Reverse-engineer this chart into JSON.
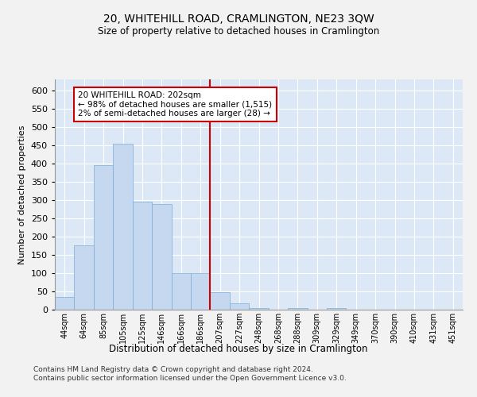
{
  "title": "20, WHITEHILL ROAD, CRAMLINGTON, NE23 3QW",
  "subtitle": "Size of property relative to detached houses in Cramlington",
  "xlabel": "Distribution of detached houses by size in Cramlington",
  "ylabel": "Number of detached properties",
  "bar_color": "#c5d8ef",
  "bar_edge_color": "#7aadd4",
  "fig_bg_color": "#f2f2f2",
  "ax_bg_color": "#dce8f5",
  "grid_color": "#ffffff",
  "categories": [
    "44sqm",
    "64sqm",
    "85sqm",
    "105sqm",
    "125sqm",
    "146sqm",
    "166sqm",
    "186sqm",
    "207sqm",
    "227sqm",
    "248sqm",
    "268sqm",
    "288sqm",
    "309sqm",
    "329sqm",
    "349sqm",
    "370sqm",
    "390sqm",
    "410sqm",
    "431sqm",
    "451sqm"
  ],
  "values": [
    35,
    175,
    395,
    455,
    295,
    290,
    100,
    100,
    48,
    17,
    5,
    1,
    5,
    0,
    5,
    0,
    0,
    1,
    0,
    0,
    1
  ],
  "ylim": [
    0,
    630
  ],
  "yticks": [
    0,
    50,
    100,
    150,
    200,
    250,
    300,
    350,
    400,
    450,
    500,
    550,
    600
  ],
  "red_line_index": 8,
  "annotation_line1": "20 WHITEHILL ROAD: 202sqm",
  "annotation_line2": "← 98% of detached houses are smaller (1,515)",
  "annotation_line3": "2% of semi-detached houses are larger (28) →",
  "annotation_box_color": "#ffffff",
  "annotation_border_color": "#cc0000",
  "footer1": "Contains HM Land Registry data © Crown copyright and database right 2024.",
  "footer2": "Contains public sector information licensed under the Open Government Licence v3.0."
}
